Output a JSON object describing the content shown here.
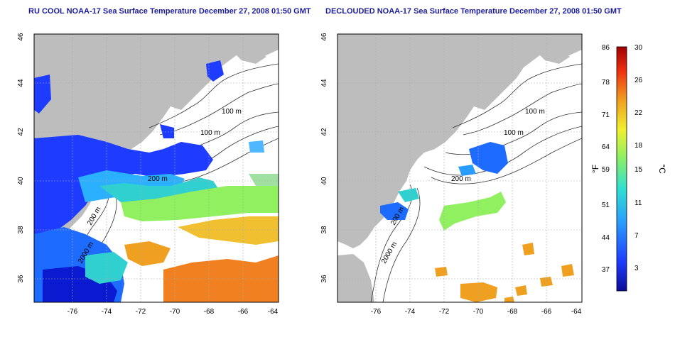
{
  "panels": [
    {
      "title": "RU COOL NOAA-17 Sea Surface Temperature December 27, 2008 01:50 GMT",
      "x_ticks": [
        "-76",
        "-74",
        "-72",
        "-70",
        "-68",
        "-66",
        "-64"
      ],
      "y_ticks": [
        "36",
        "38",
        "40",
        "42",
        "44",
        "46"
      ],
      "contour_labels": [
        "100 m",
        "100 m",
        "200 m",
        "200 m",
        "2000 m"
      ]
    },
    {
      "title": "DECLOUDED NOAA-17 Sea Surface Temperature December 27, 2008 01:50 GMT",
      "x_ticks": [
        "-76",
        "-74",
        "-72",
        "-70",
        "-68",
        "-66",
        "-64"
      ],
      "y_ticks": [
        "36",
        "38",
        "40",
        "42",
        "44",
        "46"
      ],
      "contour_labels": [
        "100 m",
        "100 m",
        "200 m",
        "200 m",
        "2000 m"
      ]
    }
  ],
  "colorbar": {
    "fahrenheit_unit": "°F",
    "celsius_unit": "°C",
    "fahrenheit_ticks": [
      "86",
      "78",
      "71",
      "64",
      "59",
      "51",
      "44",
      "37"
    ],
    "celsius_ticks": [
      "30",
      "26",
      "22",
      "18",
      "15",
      "11",
      "7",
      "3"
    ]
  },
  "colors": {
    "land": "#bdbdbd",
    "title": "#1c1c9c",
    "cold": "#1e3cff",
    "cool": "#2ab0ff",
    "mild": "#7fe07a",
    "warm": "#f0c030",
    "hot": "#f08020"
  }
}
